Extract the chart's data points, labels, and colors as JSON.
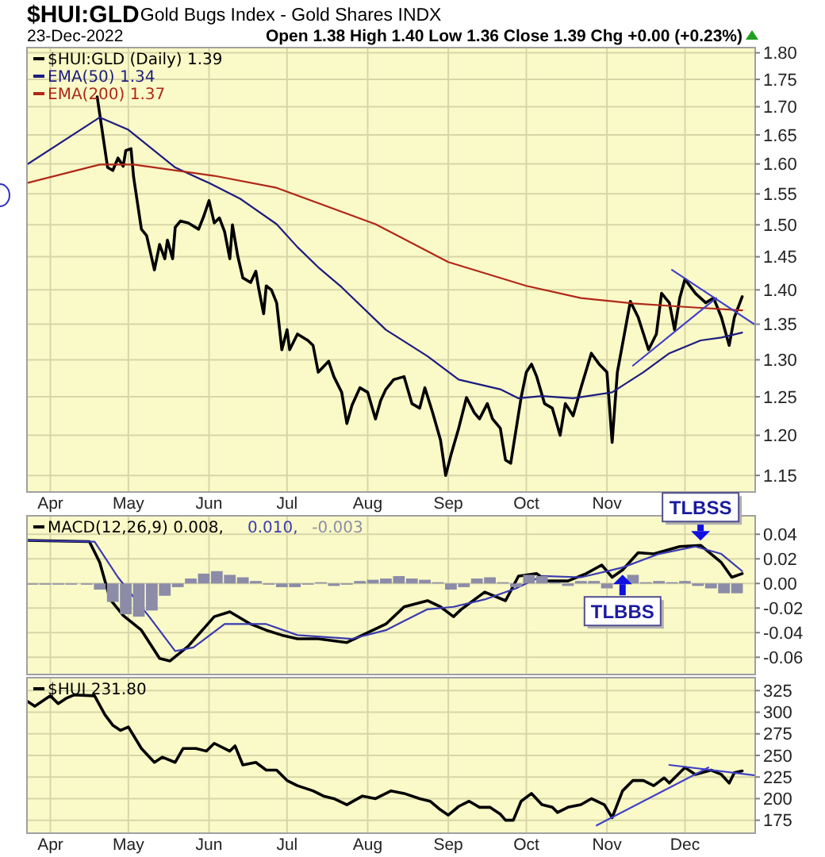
{
  "chart_data": [
    {
      "type": "line",
      "title": "$HUI:GLD",
      "subtitle": "Gold Bugs Index - Gold Shares INDX",
      "annotations": [
        "23-Dec-2022",
        "Open 1.38 High 1.40 Low 1.36 Close 1.39 Chg +0.00 (+0.23%)"
      ],
      "log": true,
      "grid": true,
      "legend": "top left",
      "xlim": [
        "2022-03-23",
        "2022-12-28"
      ],
      "xticks": [
        {
          "value": "2022-04-01",
          "label": "Apr"
        },
        {
          "value": "2022-05-01",
          "label": "May"
        },
        {
          "value": "2022-06-01",
          "label": "Jun"
        },
        {
          "value": "2022-07-01",
          "label": "Jul"
        },
        {
          "value": "2022-08-01",
          "label": "Aug"
        },
        {
          "value": "2022-09-01",
          "label": "Sep"
        },
        {
          "value": "2022-10-01",
          "label": "Oct"
        },
        {
          "value": "2022-11-01",
          "label": "Nov"
        },
        {
          "value": "2022-12-01",
          "label": null
        }
      ],
      "ylim": [
        1.13,
        1.81
      ],
      "yticks": [
        1.15,
        {
          "value": 1.2,
          "label": "1.20"
        },
        1.25,
        {
          "value": 1.3,
          "label": "1.30"
        },
        1.35,
        {
          "value": 1.4,
          "label": "1.40"
        },
        1.45,
        {
          "value": 1.5,
          "label": "1.50"
        },
        1.55,
        {
          "value": 1.6,
          "label": "1.60"
        },
        1.65,
        {
          "value": 1.7,
          "label": "1.70"
        },
        1.75,
        {
          "value": 1.8,
          "label": "1.80"
        }
      ],
      "series": [
        {
          "name": "$HUI:GLD (Daily) 1.39",
          "color": "#000000",
          "x": [
            "2022-04-19",
            "2022-04-23",
            "2022-04-25",
            "2022-04-27",
            "2022-04-29",
            "2022-04-30",
            "2022-05-02",
            "2022-05-03",
            "2022-05-06",
            "2022-05-08",
            "2022-05-11",
            "2022-05-13",
            "2022-05-15",
            "2022-05-16",
            "2022-05-18",
            "2022-05-19",
            "2022-05-21",
            "2022-05-24",
            "2022-05-28",
            "2022-05-30",
            "2022-06-01",
            "2022-06-03",
            "2022-06-05",
            "2022-06-07",
            "2022-06-09",
            "2022-06-10",
            "2022-06-12",
            "2022-06-14",
            "2022-06-17",
            "2022-06-19",
            "2022-06-20",
            "2022-06-22",
            "2022-06-23",
            "2022-06-25",
            "2022-06-27",
            "2022-06-29",
            "2022-07-01",
            "2022-07-02",
            "2022-07-05",
            "2022-07-09",
            "2022-07-11",
            "2022-07-13",
            "2022-07-17",
            "2022-07-19",
            "2022-07-22",
            "2022-07-24",
            "2022-07-26",
            "2022-07-29",
            "2022-08-01",
            "2022-08-04",
            "2022-08-06",
            "2022-08-08",
            "2022-08-11",
            "2022-08-15",
            "2022-08-18",
            "2022-08-21",
            "2022-08-23",
            "2022-08-26",
            "2022-08-29",
            "2022-08-31",
            "2022-09-02",
            "2022-09-05",
            "2022-09-08",
            "2022-09-11",
            "2022-09-13",
            "2022-09-16",
            "2022-09-18",
            "2022-09-21",
            "2022-09-23",
            "2022-09-25",
            "2022-09-29",
            "2022-10-01",
            "2022-10-03",
            "2022-10-05",
            "2022-10-08",
            "2022-10-11",
            "2022-10-14",
            "2022-10-16",
            "2022-10-19",
            "2022-10-22",
            "2022-10-26",
            "2022-10-29",
            "2022-11-01",
            "2022-11-03",
            "2022-11-05",
            "2022-11-08",
            "2022-11-10",
            "2022-11-13",
            "2022-11-17",
            "2022-11-20",
            "2022-11-22",
            "2022-11-25",
            "2022-11-27",
            "2022-11-29",
            "2022-12-01",
            "2022-12-05",
            "2022-12-09",
            "2022-12-12",
            "2022-12-15",
            "2022-12-18",
            "2022-12-20",
            "2022-12-23"
          ],
          "values": [
            1.718,
            1.594,
            1.589,
            1.61,
            1.596,
            1.623,
            1.626,
            1.578,
            1.493,
            1.483,
            1.43,
            1.469,
            1.447,
            1.476,
            1.447,
            1.496,
            1.506,
            1.503,
            1.493,
            1.514,
            1.539,
            1.503,
            1.511,
            1.489,
            1.447,
            1.5,
            1.452,
            1.418,
            1.411,
            1.428,
            1.404,
            1.365,
            1.406,
            1.4,
            1.381,
            1.314,
            1.342,
            1.314,
            1.336,
            1.327,
            1.32,
            1.283,
            1.298,
            1.277,
            1.256,
            1.215,
            1.239,
            1.262,
            1.256,
            1.221,
            1.245,
            1.26,
            1.273,
            1.277,
            1.241,
            1.235,
            1.262,
            1.229,
            1.194,
            1.15,
            1.175,
            1.209,
            1.249,
            1.229,
            1.221,
            1.241,
            1.221,
            1.209,
            1.169,
            1.165,
            1.249,
            1.283,
            1.294,
            1.277,
            1.241,
            1.235,
            1.2,
            1.241,
            1.225,
            1.262,
            1.309,
            1.294,
            1.283,
            1.191,
            1.283,
            1.342,
            1.383,
            1.36,
            1.314,
            1.336,
            1.395,
            1.381,
            1.342,
            1.388,
            1.416,
            1.395,
            1.381,
            1.388,
            1.36,
            1.32,
            1.36,
            1.39
          ]
        },
        {
          "name": "EMA(50) 1.34",
          "color": "#1c1c80",
          "x": [
            "2022-03-23",
            "2022-04-20",
            "2022-05-01",
            "2022-05-19",
            "2022-06-01",
            "2022-06-13",
            "2022-06-27",
            "2022-07-05",
            "2022-07-13",
            "2022-07-22",
            "2022-08-08",
            "2022-08-24",
            "2022-09-05",
            "2022-09-21",
            "2022-09-28",
            "2022-10-07",
            "2022-10-19",
            "2022-11-03",
            "2022-11-15",
            "2022-11-25",
            "2022-12-07",
            "2022-12-15",
            "2022-12-23"
          ],
          "values": [
            1.599,
            1.681,
            1.659,
            1.594,
            1.568,
            1.542,
            1.501,
            1.465,
            1.434,
            1.404,
            1.342,
            1.305,
            1.273,
            1.26,
            1.248,
            1.251,
            1.248,
            1.256,
            1.283,
            1.309,
            1.327,
            1.331,
            1.338
          ]
        },
        {
          "name": "EMA(200) 1.37",
          "color": "#b02818",
          "x": [
            "2022-03-23",
            "2022-04-20",
            "2022-05-03",
            "2022-06-03",
            "2022-06-27",
            "2022-08-04",
            "2022-09-01",
            "2022-10-01",
            "2022-10-22",
            "2022-11-11",
            "2022-12-01",
            "2022-12-23"
          ],
          "values": [
            1.568,
            1.599,
            1.599,
            1.58,
            1.56,
            1.501,
            1.442,
            1.406,
            1.388,
            1.38,
            1.375,
            1.37
          ]
        },
        {
          "color": "#4040c8",
          "x": [
            "2022-11-26",
            "2022-12-28"
          ],
          "values": [
            1.43,
            1.349
          ]
        },
        {
          "color": "#4040c8",
          "x": [
            "2022-11-11",
            "2022-12-13"
          ],
          "values": [
            1.292,
            1.388
          ]
        }
      ]
    },
    {
      "type": "line",
      "grid": true,
      "legend": "top",
      "tick_labels": "y",
      "xlim": [
        "2022-03-23",
        "2022-12-28"
      ],
      "xticks": [
        {
          "value": "2022-04-01",
          "label": null
        },
        {
          "value": "2022-05-01",
          "label": null
        },
        {
          "value": "2022-06-01",
          "label": null
        },
        {
          "value": "2022-07-01",
          "label": null
        },
        {
          "value": "2022-08-01",
          "label": null
        },
        {
          "value": "2022-09-01",
          "label": null
        },
        {
          "value": "2022-10-01",
          "label": null
        },
        {
          "value": "2022-11-01",
          "label": null
        },
        {
          "value": "2022-12-01",
          "label": null
        }
      ],
      "ylim": [
        -0.074,
        0.055
      ],
      "yticks": [
        {
          "value": -0.06,
          "label": "-0.06"
        },
        {
          "value": -0.04,
          "label": "-0.04"
        },
        {
          "value": -0.02,
          "label": "-0.02"
        },
        {
          "value": 0,
          "label": "0.00"
        },
        {
          "value": 0.02,
          "label": "0.02"
        },
        {
          "value": 0.04,
          "label": "0.04"
        }
      ],
      "annotations": [
        {
          "text": "TLBSS",
          "x": "2022-12-07",
          "y": 0.031
        },
        {
          "text": "TLBBS",
          "x": "2022-11-07",
          "y": 0.011
        }
      ],
      "series": [
        {
          "name": "MACD(12,26,9) 0.008,",
          "color": "#000000",
          "x": [
            "2022-03-23",
            "2022-04-16",
            "2022-04-20",
            "2022-04-24",
            "2022-04-29",
            "2022-05-06",
            "2022-05-13",
            "2022-05-17",
            "2022-05-24",
            "2022-06-03",
            "2022-06-09",
            "2022-06-17",
            "2022-06-23",
            "2022-06-29",
            "2022-07-05",
            "2022-07-13",
            "2022-07-24",
            "2022-07-30",
            "2022-08-08",
            "2022-08-15",
            "2022-08-24",
            "2022-08-29",
            "2022-09-03",
            "2022-09-06",
            "2022-09-15",
            "2022-09-23",
            "2022-09-28",
            "2022-10-05",
            "2022-10-09",
            "2022-10-17",
            "2022-10-24",
            "2022-10-30",
            "2022-11-03",
            "2022-11-07",
            "2022-11-13",
            "2022-11-19",
            "2022-11-29",
            "2022-12-07",
            "2022-12-15",
            "2022-12-19",
            "2022-12-23"
          ],
          "values": [
            0.035,
            0.034,
            0.017,
            -0.013,
            -0.026,
            -0.038,
            -0.061,
            -0.063,
            -0.051,
            -0.027,
            -0.023,
            -0.033,
            -0.038,
            -0.042,
            -0.045,
            -0.045,
            -0.048,
            -0.042,
            -0.033,
            -0.019,
            -0.014,
            -0.019,
            -0.027,
            -0.021,
            -0.007,
            -0.014,
            0.006,
            0.008,
            0.002,
            0.002,
            0.008,
            0.015,
            0.005,
            0.011,
            0.025,
            0.024,
            0.03,
            0.031,
            0.017,
            0.005,
            0.008
          ]
        },
        {
          "name": "0.010,",
          "color": "#3a3ab0",
          "x": [
            "2022-03-23",
            "2022-04-18",
            "2022-04-27",
            "2022-05-09",
            "2022-05-19",
            "2022-05-26",
            "2022-06-07",
            "2022-06-23",
            "2022-07-05",
            "2022-07-26",
            "2022-08-08",
            "2022-08-24",
            "2022-09-03",
            "2022-09-15",
            "2022-09-27",
            "2022-10-07",
            "2022-10-22",
            "2022-11-07",
            "2022-11-21",
            "2022-12-05",
            "2022-12-15",
            "2022-12-23"
          ],
          "values": [
            0.035,
            0.034,
            0.005,
            -0.027,
            -0.055,
            -0.052,
            -0.033,
            -0.033,
            -0.042,
            -0.045,
            -0.038,
            -0.021,
            -0.019,
            -0.013,
            -0.004,
            0.006,
            0.005,
            0.013,
            0.024,
            0.03,
            0.024,
            0.01
          ]
        },
        {
          "name": "-0.003",
          "type": "bar",
          "color": "#8c8ca8",
          "x": [
            "2022-03-25",
            "2022-03-30",
            "2022-04-04",
            "2022-04-09",
            "2022-04-15",
            "2022-04-20",
            "2022-04-25",
            "2022-04-30",
            "2022-05-05",
            "2022-05-10",
            "2022-05-15",
            "2022-05-20",
            "2022-05-25",
            "2022-05-30",
            "2022-06-04",
            "2022-06-09",
            "2022-06-14",
            "2022-06-19",
            "2022-06-24",
            "2022-06-29",
            "2022-07-04",
            "2022-07-09",
            "2022-07-14",
            "2022-07-19",
            "2022-07-24",
            "2022-07-29",
            "2022-08-03",
            "2022-08-08",
            "2022-08-13",
            "2022-08-18",
            "2022-08-23",
            "2022-08-28",
            "2022-09-02",
            "2022-09-07",
            "2022-09-12",
            "2022-09-17",
            "2022-09-22",
            "2022-09-27",
            "2022-10-02",
            "2022-10-07",
            "2022-10-12",
            "2022-10-17",
            "2022-10-22",
            "2022-10-27",
            "2022-11-01",
            "2022-11-06",
            "2022-11-11",
            "2022-11-16",
            "2022-11-21",
            "2022-11-26",
            "2022-12-01",
            "2022-12-06",
            "2022-12-11",
            "2022-12-16",
            "2022-12-21"
          ],
          "values": [
            -0.001,
            -0.001,
            -0.001,
            -0.001,
            -0.001,
            -0.005,
            -0.015,
            -0.025,
            -0.027,
            -0.022,
            -0.01,
            -0.003,
            0.004,
            0.008,
            0.01,
            0.007,
            0.005,
            0.002,
            -0.001,
            -0.003,
            -0.003,
            -0.001,
            0.001,
            -0.002,
            -0.001,
            0.002,
            0.003,
            0.004,
            0.006,
            0.004,
            0.003,
            0.001,
            -0.005,
            -0.003,
            0.004,
            0.005,
            0.001,
            -0.003,
            0.007,
            0.006,
            0.001,
            -0.002,
            0.002,
            0.002,
            -0.004,
            null,
            0.007,
            0.001,
            0.002,
            0.001,
            0.002,
            -0.002,
            -0.004,
            -0.008,
            -0.008
          ]
        }
      ]
    },
    {
      "type": "line",
      "grid": true,
      "legend": "top left",
      "xlim": [
        "2022-03-23",
        "2022-12-28"
      ],
      "xticks": [
        {
          "value": "2022-04-01",
          "label": "Apr"
        },
        {
          "value": "2022-05-01",
          "label": "May"
        },
        {
          "value": "2022-06-01",
          "label": "Jun"
        },
        {
          "value": "2022-07-01",
          "label": "Jul"
        },
        {
          "value": "2022-08-01",
          "label": "Aug"
        },
        {
          "value": "2022-09-01",
          "label": "Sep"
        },
        {
          "value": "2022-10-01",
          "label": "Oct"
        },
        {
          "value": "2022-11-01",
          "label": "Nov"
        },
        {
          "value": "2022-12-01",
          "label": "Dec"
        }
      ],
      "ylim": [
        160,
        340
      ],
      "yticks": [
        175,
        200,
        225,
        250,
        275,
        300,
        325
      ],
      "series": [
        {
          "name": "$HUI 231.80",
          "color": "#000000",
          "x": [
            "2022-03-23",
            "2022-03-26",
            "2022-04-01",
            "2022-04-04",
            "2022-04-07",
            "2022-04-10",
            "2022-04-18",
            "2022-04-22",
            "2022-04-25",
            "2022-04-28",
            "2022-05-01",
            "2022-05-06",
            "2022-05-11",
            "2022-05-14",
            "2022-05-19",
            "2022-05-22",
            "2022-05-27",
            "2022-05-31",
            "2022-06-03",
            "2022-06-09",
            "2022-06-11",
            "2022-06-14",
            "2022-06-19",
            "2022-06-23",
            "2022-06-27",
            "2022-07-01",
            "2022-07-05",
            "2022-07-11",
            "2022-07-15",
            "2022-07-19",
            "2022-07-24",
            "2022-07-30",
            "2022-08-04",
            "2022-08-10",
            "2022-08-15",
            "2022-08-21",
            "2022-08-25",
            "2022-08-29",
            "2022-09-01",
            "2022-09-05",
            "2022-09-09",
            "2022-09-13",
            "2022-09-17",
            "2022-09-21",
            "2022-09-23",
            "2022-09-26",
            "2022-09-29",
            "2022-10-03",
            "2022-10-07",
            "2022-10-11",
            "2022-10-13",
            "2022-10-17",
            "2022-10-22",
            "2022-10-26",
            "2022-10-31",
            "2022-11-03",
            "2022-11-07",
            "2022-11-11",
            "2022-11-15",
            "2022-11-19",
            "2022-11-23",
            "2022-11-25",
            "2022-12-01",
            "2022-12-05",
            "2022-12-11",
            "2022-12-15",
            "2022-12-18",
            "2022-12-20",
            "2022-12-23"
          ],
          "values": [
            313,
            307,
            319,
            310,
            316,
            320,
            319,
            297,
            285,
            279,
            283,
            258,
            242,
            248,
            242,
            258,
            258,
            255,
            264,
            255,
            261,
            239,
            242,
            233,
            233,
            221,
            215,
            209,
            203,
            200,
            193,
            203,
            200,
            209,
            206,
            200,
            197,
            187,
            181,
            191,
            197,
            190,
            190,
            182,
            175,
            175,
            197,
            206,
            193,
            190,
            184,
            190,
            193,
            200,
            193,
            178,
            209,
            221,
            221,
            215,
            224,
            218,
            236,
            228,
            233,
            228,
            218,
            230,
            232
          ]
        },
        {
          "color": "#4040c8",
          "x": [
            "2022-10-28",
            "2022-12-10"
          ],
          "values": [
            169,
            236
          ]
        },
        {
          "color": "#4040c8",
          "x": [
            "2022-11-25",
            "2022-12-28"
          ],
          "values": [
            239,
            227
          ]
        }
      ]
    }
  ]
}
